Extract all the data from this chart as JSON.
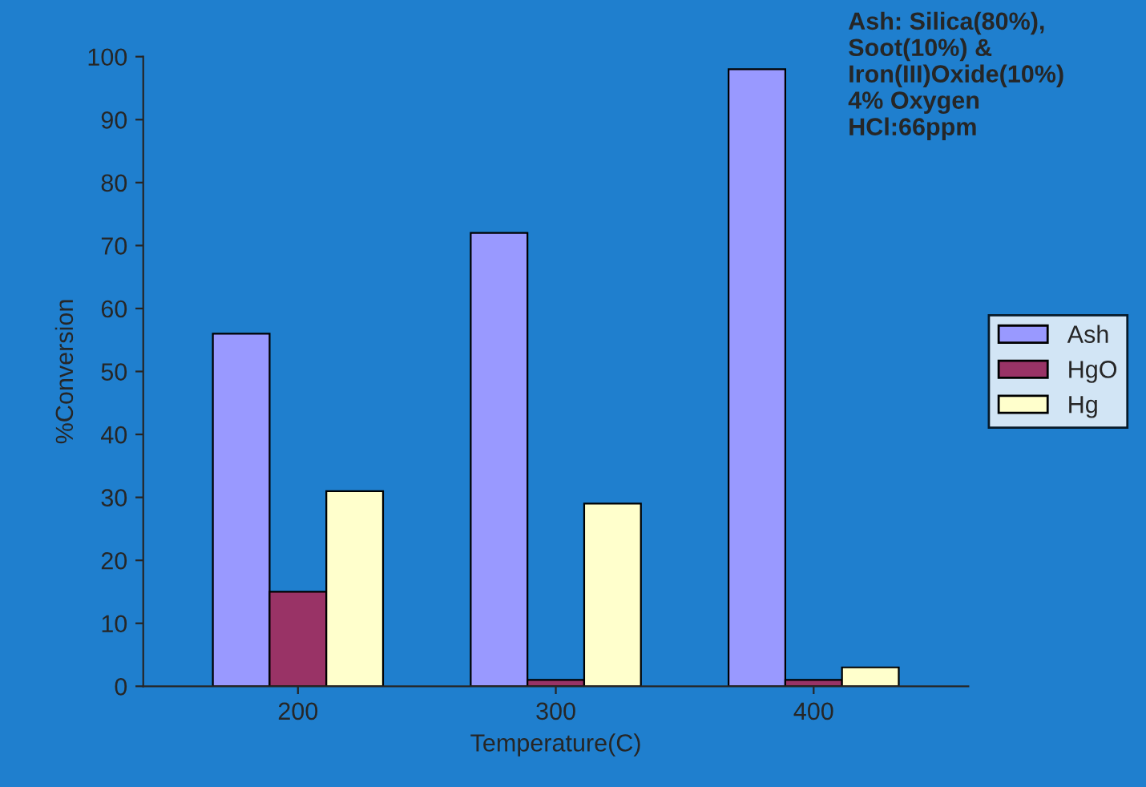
{
  "chart_data": {
    "type": "bar",
    "xlabel": "Temperature(C)",
    "ylabel": "%Conversion",
    "categories": [
      "200",
      "300",
      "400"
    ],
    "series": [
      {
        "name": "Ash",
        "color": "#9999ff",
        "values": [
          56,
          72,
          98
        ]
      },
      {
        "name": "HgO",
        "color": "#993366",
        "values": [
          15,
          1,
          1
        ]
      },
      {
        "name": "Hg",
        "color": "#ffffcc",
        "values": [
          31,
          29,
          3
        ]
      }
    ],
    "ylim": [
      0,
      100
    ],
    "yticks": [
      0,
      10,
      20,
      30,
      40,
      50,
      60,
      70,
      80,
      90,
      100
    ],
    "grid": false,
    "legend": "right",
    "annotations": [
      "Ash: Silica(80%),\nSoot(10%) &\nIron(III)Oxide(10%)\n4% Oxygen\nHCl:66ppm"
    ]
  }
}
